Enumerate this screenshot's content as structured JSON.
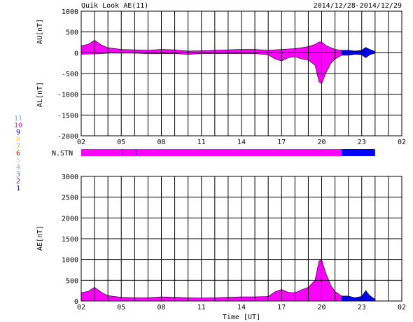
{
  "header": {
    "title": "Quik Look AE(11)",
    "date_range": "2014/12/28-2014/12/29"
  },
  "colors": {
    "station_count_10": "#ff00ff",
    "station_count_1": "#0000ff",
    "grid": "#000000",
    "background": "#ffffff"
  },
  "station_legend": {
    "items": [
      {
        "label": "11",
        "color": "#00e5ff"
      },
      {
        "label": "10",
        "color": "#ff00ff"
      },
      {
        "label": "9",
        "color": "#0000ff"
      },
      {
        "label": "8",
        "color": "#ffd000"
      },
      {
        "label": "7",
        "color": "#9ad000"
      },
      {
        "label": "6",
        "color": "#ff0000"
      },
      {
        "label": "5",
        "color": "#c8c8c8"
      },
      {
        "label": "4",
        "color": "#a0a0a0"
      },
      {
        "label": "3",
        "color": "#00a0a0"
      },
      {
        "label": "2",
        "color": "#8000c0"
      },
      {
        "label": "1",
        "color": "#0000a0"
      }
    ]
  },
  "chart_data": [
    {
      "type": "area",
      "title": "AU/AL",
      "ylabel_upper": "AU[nT]",
      "ylabel_lower": "AL[nT]",
      "ylim": [
        -2000,
        1000
      ],
      "yticks": [
        1000,
        500,
        0,
        -500,
        -1000,
        -1500,
        -2000
      ],
      "xlim_hours": [
        2,
        26
      ],
      "xticks": [
        "02",
        "05",
        "08",
        "11",
        "14",
        "17",
        "20",
        "23",
        "02"
      ],
      "grid": true,
      "au": {
        "x": [
          2.0,
          2.5,
          3.0,
          3.5,
          4.0,
          5.0,
          6.0,
          7.0,
          8.0,
          9.0,
          10.0,
          11.0,
          12.0,
          13.0,
          14.0,
          15.0,
          16.0,
          16.5,
          17.0,
          17.5,
          18.0,
          18.5,
          19.0,
          19.5,
          19.8,
          20.0,
          20.3,
          20.7,
          21.0,
          21.5,
          22.0,
          22.5,
          23.0,
          23.3,
          23.6,
          24.0
        ],
        "y": [
          170,
          200,
          300,
          190,
          120,
          80,
          70,
          60,
          80,
          70,
          40,
          50,
          60,
          70,
          80,
          80,
          60,
          70,
          80,
          90,
          100,
          120,
          150,
          200,
          260,
          260,
          180,
          120,
          80,
          60,
          60,
          40,
          60,
          130,
          80,
          30
        ]
      },
      "al": {
        "x": [
          2.0,
          2.5,
          3.0,
          3.5,
          4.0,
          5.0,
          6.0,
          7.0,
          8.0,
          9.0,
          10.0,
          11.0,
          12.0,
          13.0,
          14.0,
          15.0,
          16.0,
          16.5,
          17.0,
          17.5,
          18.0,
          18.5,
          19.0,
          19.5,
          19.8,
          20.0,
          20.3,
          20.7,
          21.0,
          21.5,
          22.0,
          22.5,
          23.0,
          23.3,
          23.6,
          24.0
        ],
        "y": [
          -40,
          -30,
          -30,
          -20,
          -10,
          -10,
          -10,
          -20,
          -20,
          -20,
          -40,
          -20,
          -20,
          -20,
          -20,
          -20,
          -50,
          -150,
          -200,
          -120,
          -100,
          -150,
          -180,
          -300,
          -700,
          -750,
          -500,
          -250,
          -150,
          -60,
          -60,
          -40,
          -50,
          -120,
          -50,
          -10
        ]
      }
    },
    {
      "type": "bar",
      "title": "N.STN",
      "segments": [
        {
          "start": 2.0,
          "end": 5.1,
          "stations": 10
        },
        {
          "start": 5.1,
          "end": 6.1,
          "stations": 10
        },
        {
          "start": 6.1,
          "end": 21.5,
          "stations": 10
        },
        {
          "start": 21.5,
          "end": 24.0,
          "stations": 1
        }
      ],
      "dividers": [
        5.1,
        6.1
      ]
    },
    {
      "type": "area",
      "title": "AE",
      "ylabel": "AE[nT]",
      "xlabel": "Time [UT]",
      "ylim": [
        0,
        3000
      ],
      "yticks": [
        3000,
        2500,
        2000,
        1500,
        1000,
        500,
        0
      ],
      "xlim_hours": [
        2,
        26
      ],
      "xticks": [
        "02",
        "05",
        "08",
        "11",
        "14",
        "17",
        "20",
        "23",
        "02"
      ],
      "grid": true,
      "x": [
        2.0,
        2.5,
        3.0,
        3.5,
        4.0,
        5.0,
        6.0,
        7.0,
        8.0,
        9.0,
        10.0,
        11.0,
        12.0,
        13.0,
        14.0,
        15.0,
        16.0,
        16.5,
        17.0,
        17.5,
        18.0,
        18.5,
        19.0,
        19.5,
        19.8,
        20.0,
        20.3,
        20.7,
        21.0,
        21.5,
        22.0,
        22.5,
        23.0,
        23.3,
        23.6,
        24.0
      ],
      "y": [
        200,
        230,
        330,
        210,
        130,
        90,
        80,
        80,
        100,
        90,
        80,
        70,
        80,
        90,
        100,
        100,
        110,
        220,
        280,
        210,
        200,
        270,
        330,
        500,
        960,
        1000,
        680,
        370,
        230,
        120,
        120,
        80,
        110,
        250,
        130,
        40
      ]
    }
  ]
}
